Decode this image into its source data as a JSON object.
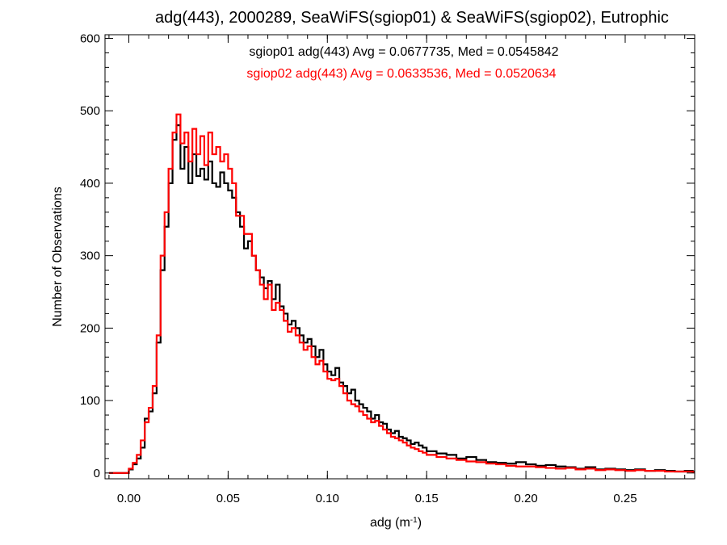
{
  "chart_data": {
    "type": "line",
    "step": true,
    "title": "adg(443), 2000289, SeaWiFS(sgiop01) & SeaWiFS(sgiop02), Eutrophic",
    "xlabel": "adg (m",
    "xlabel_sup": "-1",
    "xlabel_suffix": ")",
    "ylabel": "Number of Observations",
    "xlim": [
      -0.012,
      0.285
    ],
    "ylim": [
      -8,
      605
    ],
    "xticks": [
      0.0,
      0.05,
      0.1,
      0.15,
      0.2,
      0.25
    ],
    "xtick_labels": [
      "0.00",
      "0.05",
      "0.10",
      "0.15",
      "0.20",
      "0.25"
    ],
    "yticks": [
      0,
      100,
      200,
      300,
      400,
      500,
      600
    ],
    "ytick_labels": [
      "0",
      "100",
      "200",
      "300",
      "400",
      "500",
      "600"
    ],
    "grid": false,
    "annotations": [
      {
        "text": "sgiop01 adg(443) Avg = 0.0677735, Med = 0.0545842",
        "color": "#000000"
      },
      {
        "text": "sgiop02 adg(443) Avg = 0.0633536, Med = 0.0520634",
        "color": "#ff0000"
      }
    ],
    "series": [
      {
        "name": "sgiop01",
        "color": "#000000",
        "x": [
          -0.01,
          -0.005,
          0.0,
          0.002,
          0.004,
          0.006,
          0.008,
          0.01,
          0.012,
          0.014,
          0.016,
          0.018,
          0.02,
          0.022,
          0.024,
          0.026,
          0.028,
          0.03,
          0.032,
          0.034,
          0.036,
          0.038,
          0.04,
          0.042,
          0.044,
          0.046,
          0.048,
          0.05,
          0.052,
          0.054,
          0.056,
          0.058,
          0.06,
          0.062,
          0.064,
          0.066,
          0.068,
          0.07,
          0.072,
          0.074,
          0.076,
          0.078,
          0.08,
          0.082,
          0.084,
          0.086,
          0.088,
          0.09,
          0.092,
          0.094,
          0.096,
          0.098,
          0.1,
          0.102,
          0.104,
          0.106,
          0.108,
          0.11,
          0.112,
          0.114,
          0.116,
          0.118,
          0.12,
          0.122,
          0.124,
          0.126,
          0.128,
          0.13,
          0.132,
          0.134,
          0.136,
          0.138,
          0.14,
          0.142,
          0.144,
          0.146,
          0.148,
          0.15,
          0.155,
          0.16,
          0.165,
          0.17,
          0.175,
          0.18,
          0.185,
          0.19,
          0.195,
          0.2,
          0.205,
          0.21,
          0.215,
          0.22,
          0.225,
          0.23,
          0.235,
          0.24,
          0.245,
          0.25,
          0.255,
          0.26,
          0.265,
          0.27,
          0.275,
          0.28,
          0.284
        ],
        "values": [
          0,
          0,
          5,
          12,
          20,
          35,
          75,
          85,
          110,
          180,
          280,
          340,
          400,
          460,
          480,
          420,
          450,
          400,
          440,
          410,
          420,
          405,
          430,
          400,
          395,
          415,
          400,
          390,
          380,
          360,
          340,
          310,
          320,
          300,
          280,
          270,
          255,
          265,
          240,
          260,
          230,
          220,
          205,
          210,
          200,
          190,
          180,
          185,
          175,
          160,
          170,
          150,
          140,
          135,
          145,
          125,
          120,
          110,
          115,
          100,
          95,
          90,
          85,
          75,
          80,
          70,
          68,
          60,
          55,
          58,
          50,
          48,
          45,
          40,
          42,
          38,
          35,
          30,
          27,
          25,
          20,
          22,
          18,
          15,
          14,
          13,
          15,
          12,
          10,
          11,
          9,
          8,
          6,
          8,
          5,
          6,
          5,
          4,
          5,
          3,
          4,
          3,
          2,
          3,
          2
        ]
      },
      {
        "name": "sgiop02",
        "color": "#ff0000",
        "x": [
          -0.01,
          -0.005,
          0.0,
          0.002,
          0.004,
          0.006,
          0.008,
          0.01,
          0.012,
          0.014,
          0.016,
          0.018,
          0.02,
          0.022,
          0.024,
          0.026,
          0.028,
          0.03,
          0.032,
          0.034,
          0.036,
          0.038,
          0.04,
          0.042,
          0.044,
          0.046,
          0.048,
          0.05,
          0.052,
          0.054,
          0.056,
          0.058,
          0.06,
          0.062,
          0.064,
          0.066,
          0.068,
          0.07,
          0.072,
          0.074,
          0.076,
          0.078,
          0.08,
          0.082,
          0.084,
          0.086,
          0.088,
          0.09,
          0.092,
          0.094,
          0.096,
          0.098,
          0.1,
          0.102,
          0.104,
          0.106,
          0.108,
          0.11,
          0.112,
          0.114,
          0.116,
          0.118,
          0.12,
          0.122,
          0.124,
          0.126,
          0.128,
          0.13,
          0.132,
          0.134,
          0.136,
          0.138,
          0.14,
          0.142,
          0.144,
          0.146,
          0.148,
          0.15,
          0.155,
          0.16,
          0.165,
          0.17,
          0.175,
          0.18,
          0.185,
          0.19,
          0.195,
          0.2,
          0.205,
          0.21,
          0.215,
          0.22,
          0.225,
          0.23,
          0.235,
          0.24,
          0.245,
          0.25,
          0.255,
          0.26,
          0.265,
          0.27,
          0.275,
          0.28,
          0.284
        ],
        "values": [
          0,
          0,
          6,
          14,
          25,
          45,
          70,
          90,
          120,
          190,
          300,
          360,
          420,
          470,
          495,
          455,
          470,
          430,
          475,
          440,
          465,
          425,
          470,
          440,
          450,
          430,
          440,
          420,
          400,
          355,
          355,
          330,
          330,
          300,
          280,
          260,
          240,
          260,
          225,
          235,
          225,
          210,
          195,
          200,
          190,
          180,
          170,
          175,
          160,
          150,
          155,
          140,
          130,
          128,
          130,
          120,
          110,
          100,
          95,
          92,
          85,
          80,
          75,
          70,
          72,
          65,
          60,
          55,
          50,
          48,
          45,
          42,
          38,
          35,
          33,
          30,
          28,
          25,
          22,
          20,
          18,
          16,
          15,
          13,
          12,
          10,
          9,
          9,
          8,
          7,
          6,
          7,
          5,
          6,
          4,
          5,
          4,
          3,
          4,
          3,
          3,
          2,
          2,
          2,
          1
        ]
      }
    ]
  }
}
